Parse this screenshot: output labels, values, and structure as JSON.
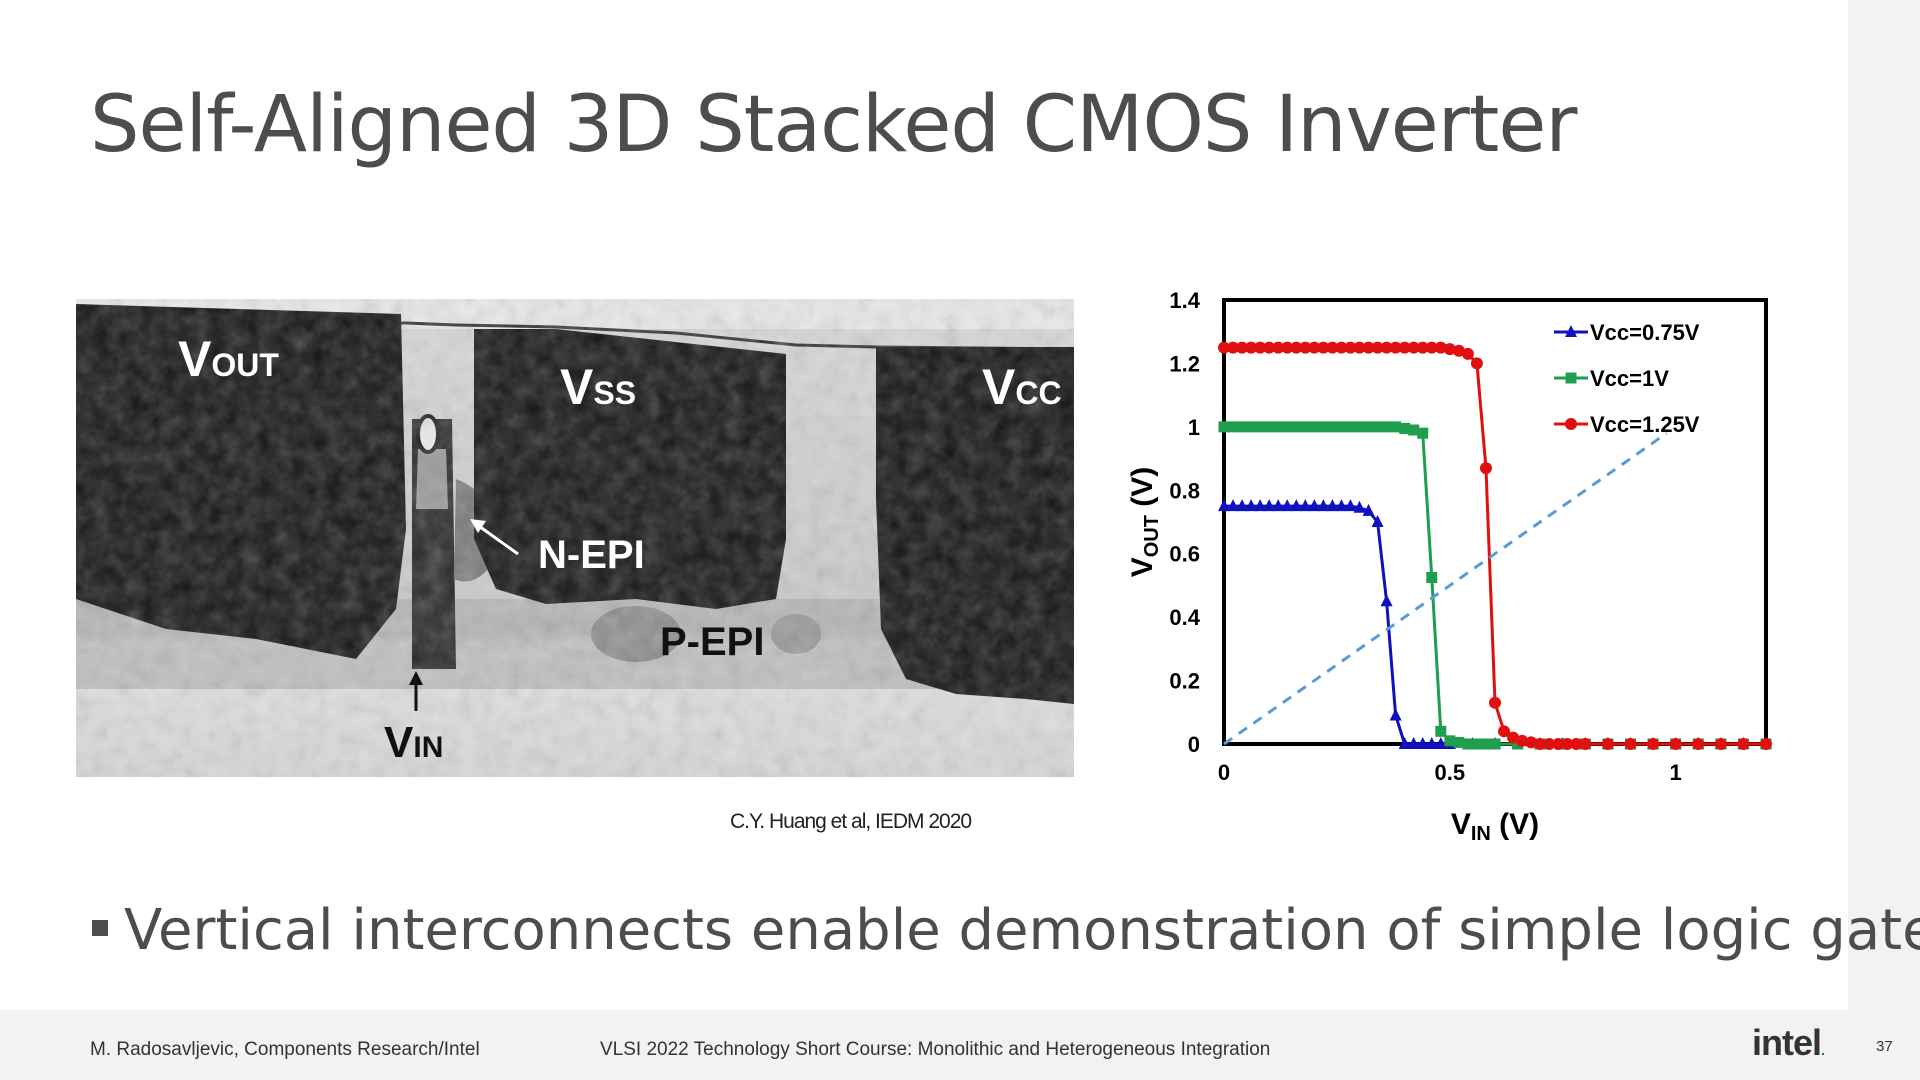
{
  "title": "Self-Aligned 3D Stacked CMOS Inverter",
  "tem_labels": {
    "vout": "V",
    "vout_sub": "OUT",
    "vss": "V",
    "vss_sub": "SS",
    "vcc": "V",
    "vcc_sub": "CC",
    "vin": "V",
    "vin_sub": "IN",
    "nepi": "N-EPI",
    "pepi": "P-EPI"
  },
  "citation": "C.Y. Huang et al, IEDM 2020",
  "bullet": "Vertical interconnects enable demonstration of simple logic gates",
  "footer": {
    "author": "M. Radosavljevic, Components Research/Intel",
    "course": "VLSI 2022 Technology Short Course: Monolithic and Heterogeneous Integration",
    "logo": "intel",
    "page": "37"
  },
  "chart_data": {
    "type": "line",
    "xlabel": "V",
    "xlabel_sub": "IN",
    "xlabel_unit": " (V)",
    "ylabel": "V",
    "ylabel_sub": "OUT",
    "ylabel_unit": " (V)",
    "xlim": [
      0,
      1.2
    ],
    "ylim": [
      0,
      1.4
    ],
    "xticks": [
      0,
      0.5,
      1
    ],
    "xtick_labels": [
      "0",
      "0.5",
      "1"
    ],
    "yticks": [
      0,
      0.2,
      0.4,
      0.6,
      0.8,
      1,
      1.2,
      1.4
    ],
    "ytick_labels": [
      "0",
      "0.2",
      "0.4",
      "0.6",
      "0.8",
      "1",
      "1.2",
      "1.4"
    ],
    "legend_position": "top-right",
    "series": [
      {
        "name": "Vcc=0.75V",
        "color": "#1010c0",
        "marker": "triangle",
        "x": [
          0,
          0.02,
          0.04,
          0.06,
          0.08,
          0.1,
          0.12,
          0.14,
          0.16,
          0.18,
          0.2,
          0.22,
          0.24,
          0.26,
          0.28,
          0.3,
          0.32,
          0.34,
          0.36,
          0.38,
          0.4,
          0.42,
          0.44,
          0.46,
          0.48,
          0.5,
          0.55,
          0.6,
          0.65,
          0.7,
          0.75,
          0.8,
          0.85,
          0.9,
          0.95,
          1.0,
          1.05,
          1.1,
          1.15,
          1.2
        ],
        "y": [
          0.75,
          0.75,
          0.75,
          0.75,
          0.75,
          0.75,
          0.75,
          0.75,
          0.75,
          0.75,
          0.75,
          0.75,
          0.75,
          0.75,
          0.75,
          0.745,
          0.735,
          0.7,
          0.45,
          0.09,
          0,
          0,
          0,
          0,
          0,
          0,
          0,
          0,
          0,
          0,
          0,
          0,
          0,
          0,
          0,
          0,
          0,
          0,
          0,
          0
        ]
      },
      {
        "name": "Vcc=1V",
        "color": "#1e9e4e",
        "marker": "square",
        "x": [
          0,
          0.02,
          0.04,
          0.06,
          0.08,
          0.1,
          0.12,
          0.14,
          0.16,
          0.18,
          0.2,
          0.22,
          0.24,
          0.26,
          0.28,
          0.3,
          0.32,
          0.34,
          0.36,
          0.38,
          0.4,
          0.42,
          0.44,
          0.46,
          0.48,
          0.5,
          0.52,
          0.54,
          0.56,
          0.58,
          0.6,
          0.65,
          0.7,
          0.75,
          0.8,
          0.85,
          0.9,
          0.95,
          1.0,
          1.05,
          1.1,
          1.15,
          1.2
        ],
        "y": [
          1.0,
          1.0,
          1.0,
          1.0,
          1.0,
          1.0,
          1.0,
          1.0,
          1.0,
          1.0,
          1.0,
          1.0,
          1.0,
          1.0,
          1.0,
          1.0,
          1.0,
          1.0,
          1.0,
          1.0,
          0.995,
          0.99,
          0.98,
          0.525,
          0.04,
          0.01,
          0.005,
          0,
          0,
          0,
          0,
          0,
          0,
          0,
          0,
          0,
          0,
          0,
          0,
          0,
          0,
          0,
          0
        ]
      },
      {
        "name": "Vcc=1.25V",
        "color": "#e01010",
        "marker": "circle",
        "x": [
          0,
          0.02,
          0.04,
          0.06,
          0.08,
          0.1,
          0.12,
          0.14,
          0.16,
          0.18,
          0.2,
          0.22,
          0.24,
          0.26,
          0.28,
          0.3,
          0.32,
          0.34,
          0.36,
          0.38,
          0.4,
          0.42,
          0.44,
          0.46,
          0.48,
          0.5,
          0.52,
          0.54,
          0.56,
          0.58,
          0.6,
          0.62,
          0.64,
          0.66,
          0.68,
          0.7,
          0.72,
          0.74,
          0.76,
          0.78,
          0.8,
          0.85,
          0.9,
          0.95,
          1.0,
          1.05,
          1.1,
          1.15,
          1.2
        ],
        "y": [
          1.25,
          1.25,
          1.25,
          1.25,
          1.25,
          1.25,
          1.25,
          1.25,
          1.25,
          1.25,
          1.25,
          1.25,
          1.25,
          1.25,
          1.25,
          1.25,
          1.25,
          1.25,
          1.25,
          1.25,
          1.25,
          1.25,
          1.25,
          1.25,
          1.25,
          1.245,
          1.24,
          1.23,
          1.2,
          0.87,
          0.13,
          0.04,
          0.02,
          0.01,
          0.005,
          0,
          0,
          0,
          0,
          0,
          0,
          0,
          0,
          0,
          0,
          0,
          0,
          0,
          0
        ]
      },
      {
        "name": "",
        "color": "#5b9bd5",
        "marker": "none",
        "dashed": true,
        "x": [
          0,
          0.98
        ],
        "y": [
          0,
          0.98
        ]
      }
    ]
  }
}
